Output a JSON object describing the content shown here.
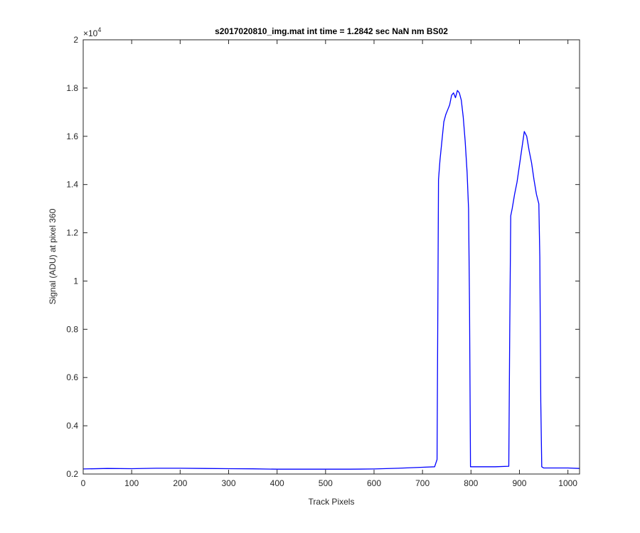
{
  "chart_data": {
    "type": "line",
    "title": "s2017020810_img.mat int time = 1.2842 sec  NaN nm BS02",
    "xlabel": "Track Pixels",
    "ylabel": "Signal (ADU) at pixel 360",
    "xlim": [
      0,
      1024
    ],
    "ylim": [
      2000,
      20000
    ],
    "y_exponent_label": "×10",
    "y_exponent_power": "4",
    "x_ticks": [
      0,
      100,
      200,
      300,
      400,
      500,
      600,
      700,
      800,
      900,
      1000
    ],
    "x_tick_labels": [
      "0",
      "100",
      "200",
      "300",
      "400",
      "500",
      "600",
      "700",
      "800",
      "900",
      "1000"
    ],
    "y_ticks": [
      2000,
      4000,
      6000,
      8000,
      10000,
      12000,
      14000,
      16000,
      18000,
      20000
    ],
    "y_tick_labels": [
      "0.2",
      "0.4",
      "0.6",
      "0.8",
      "1",
      "1.2",
      "1.4",
      "1.6",
      "1.8",
      "2"
    ],
    "grid": false,
    "line_color": "#0000ff",
    "series": [
      {
        "x": [
          0,
          50,
          100,
          150,
          200,
          250,
          300,
          350,
          400,
          450,
          500,
          550,
          600,
          650,
          700,
          725,
          730,
          733,
          736,
          740,
          744,
          748,
          752,
          756,
          760,
          764,
          768,
          772,
          776,
          780,
          784,
          788,
          792,
          795,
          797,
          799,
          802,
          850,
          878,
          880,
          882,
          885,
          890,
          895,
          900,
          905,
          910,
          915,
          920,
          925,
          930,
          935,
          940,
          942,
          944,
          946,
          950,
          1000,
          1024
        ],
        "y": [
          2210,
          2230,
          2220,
          2240,
          2240,
          2230,
          2220,
          2215,
          2200,
          2200,
          2200,
          2200,
          2210,
          2240,
          2280,
          2300,
          2600,
          14200,
          15000,
          15800,
          16600,
          16900,
          17100,
          17300,
          17700,
          17800,
          17600,
          17900,
          17800,
          17500,
          16800,
          15800,
          14500,
          13000,
          9000,
          2300,
          2300,
          2300,
          2320,
          8000,
          12700,
          13000,
          13600,
          14100,
          14800,
          15500,
          16200,
          16000,
          15400,
          14900,
          14200,
          13600,
          13200,
          11000,
          5000,
          2300,
          2250,
          2250,
          2230
        ]
      }
    ]
  }
}
